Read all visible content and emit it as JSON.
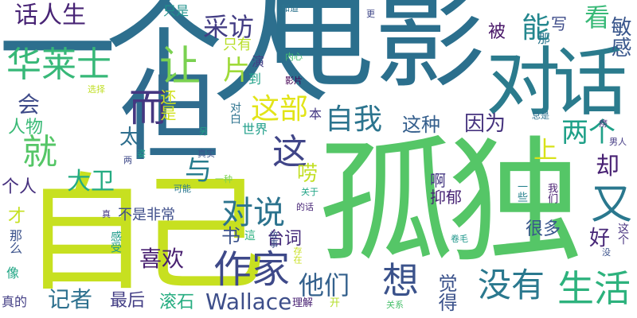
{
  "words": [
    {
      "id": "w1",
      "text": "一个人",
      "color": "#2d6f8e"
    },
    {
      "id": "w2",
      "text": "电影",
      "color": "#2b6f8d"
    },
    {
      "id": "w3",
      "text": "孤独",
      "color": "#55c667"
    },
    {
      "id": "w4",
      "text": "自己",
      "color": "#c7e020"
    },
    {
      "id": "w5",
      "text": "但",
      "color": "#2f6c8e"
    },
    {
      "id": "w6",
      "text": "对话",
      "color": "#2b7b8d"
    },
    {
      "id": "w7",
      "text": "华莱士",
      "color": "#37b878"
    },
    {
      "id": "w8",
      "text": "作家",
      "color": "#3e4989"
    },
    {
      "id": "w9",
      "text": "想",
      "color": "#3b528b"
    },
    {
      "id": "w10",
      "text": "没有",
      "color": "#2a788e"
    },
    {
      "id": "w11",
      "text": "生活",
      "color": "#2db27d"
    },
    {
      "id": "w12",
      "text": "又",
      "color": "#2a788e"
    },
    {
      "id": "w13",
      "text": "话人生",
      "color": "#482475"
    },
    {
      "id": "w14",
      "text": "采访",
      "color": "#433d84"
    },
    {
      "id": "w15",
      "text": "让",
      "color": "#7ad151"
    },
    {
      "id": "w16",
      "text": "而",
      "color": "#453781"
    },
    {
      "id": "w17",
      "text": "能",
      "color": "#24878e"
    },
    {
      "id": "w18",
      "text": "写",
      "color": "#3e4c8a"
    },
    {
      "id": "w19",
      "text": "看",
      "color": "#38b977"
    },
    {
      "id": "w20",
      "text": "敏感",
      "color": "#39568c"
    },
    {
      "id": "w21",
      "text": "这部",
      "color": "#e2e418"
    },
    {
      "id": "w22",
      "text": "自我",
      "color": "#2b748e"
    },
    {
      "id": "w23",
      "text": "就",
      "color": "#55c667"
    },
    {
      "id": "w24",
      "text": "这",
      "color": "#404588"
    },
    {
      "id": "w25",
      "text": "这种",
      "color": "#355f8d"
    },
    {
      "id": "w26",
      "text": "因为",
      "color": "#46337e"
    },
    {
      "id": "w27",
      "text": "两个",
      "color": "#1fa088"
    },
    {
      "id": "w28",
      "text": "对说",
      "color": "#2c738e"
    },
    {
      "id": "w29",
      "text": "大卫",
      "color": "#25ab82"
    },
    {
      "id": "w30",
      "text": "喜欢",
      "color": "#481f70"
    },
    {
      "id": "w31",
      "text": "他们",
      "color": "#34618d"
    },
    {
      "id": "w32",
      "text": "最后",
      "color": "#433e85"
    },
    {
      "id": "w33",
      "text": "Wallace",
      "color": "#3d4e8a"
    },
    {
      "id": "w34",
      "text": "滚石",
      "color": "#27ad81"
    },
    {
      "id": "w35",
      "text": "记者",
      "color": "#2d708e"
    },
    {
      "id": "w36",
      "text": "人物",
      "color": "#3aba76"
    },
    {
      "id": "w37",
      "text": "个人",
      "color": "#46307e"
    },
    {
      "id": "w38",
      "text": "会",
      "color": "#3e4a89"
    },
    {
      "id": "w39",
      "text": "太",
      "color": "#2e6f8e"
    },
    {
      "id": "w40",
      "text": "与",
      "color": "#287d8e"
    },
    {
      "id": "w41",
      "text": "片",
      "color": "#9fda3a"
    },
    {
      "id": "w42",
      "text": "上",
      "color": "#d8e219"
    },
    {
      "id": "w43",
      "text": "却",
      "color": "#482173"
    },
    {
      "id": "w44",
      "text": "啊",
      "color": "#453882"
    },
    {
      "id": "w45",
      "text": "抑郁",
      "color": "#482576"
    },
    {
      "id": "w46",
      "text": "很多",
      "color": "#39568c"
    },
    {
      "id": "w47",
      "text": "好",
      "color": "#482878"
    },
    {
      "id": "w48",
      "text": "觉得",
      "color": "#3b528b"
    },
    {
      "id": "w49",
      "text": "台词",
      "color": "#472d7b"
    },
    {
      "id": "w50",
      "text": "书",
      "color": "#3b528b"
    },
    {
      "id": "w51",
      "text": "唠",
      "color": "#c2df23"
    },
    {
      "id": "w52",
      "text": "只是",
      "color": "#20928c"
    },
    {
      "id": "w53",
      "text": "只有",
      "color": "#b8de29"
    },
    {
      "id": "w54",
      "text": "被",
      "color": "#481668"
    },
    {
      "id": "w55",
      "text": "那",
      "color": "#2a778e"
    },
    {
      "id": "w56",
      "text": "还是",
      "color": "#d0e11c"
    },
    {
      "id": "w57",
      "text": "演",
      "color": "#433e85"
    },
    {
      "id": "w58",
      "text": "到",
      "color": "#1fa188"
    },
    {
      "id": "w59",
      "text": "对白",
      "color": "#2c728e"
    },
    {
      "id": "w60",
      "text": "世界",
      "color": "#1f9e89"
    },
    {
      "id": "w61",
      "text": "本",
      "color": "#443983"
    },
    {
      "id": "w62",
      "text": "影片",
      "color": "#440154"
    },
    {
      "id": "w63",
      "text": "内心",
      "color": "#44bf70"
    },
    {
      "id": "w64",
      "text": "知道",
      "color": "#2c738e"
    },
    {
      "id": "w65",
      "text": "更",
      "color": "#3f4788"
    },
    {
      "id": "w66",
      "text": "总是",
      "color": "#2d708e"
    },
    {
      "id": "w67",
      "text": "痨",
      "color": "#482878"
    },
    {
      "id": "w68",
      "text": "男人",
      "color": "#443b84"
    },
    {
      "id": "w69",
      "text": "选择",
      "color": "#c0df25"
    },
    {
      "id": "w70",
      "text": "另",
      "color": "#20a386"
    },
    {
      "id": "w71",
      "text": "真实",
      "color": "#3a548c"
    },
    {
      "id": "w72",
      "text": "姿",
      "color": "#1fa088"
    },
    {
      "id": "w73",
      "text": "两",
      "color": "#3e4989"
    },
    {
      "id": "w74",
      "text": "可能",
      "color": "#2a778e"
    },
    {
      "id": "w75",
      "text": "一种",
      "color": "#7ad151"
    },
    {
      "id": "w76",
      "text": "一些",
      "color": "#26828e"
    },
    {
      "id": "w77",
      "text": "我们",
      "color": "#482071"
    },
    {
      "id": "w78",
      "text": "关于",
      "color": "#20a486"
    },
    {
      "id": "w79",
      "text": "的话",
      "color": "#482677"
    },
    {
      "id": "w80",
      "text": "真",
      "color": "#453781"
    },
    {
      "id": "w81",
      "text": "不是非常",
      "color": "#3d4d8a"
    },
    {
      "id": "w82",
      "text": "才",
      "color": "#c5e021"
    },
    {
      "id": "w83",
      "text": "那么",
      "color": "#3b528b"
    },
    {
      "id": "w84",
      "text": "感受",
      "color": "#1e9b8a"
    },
    {
      "id": "w85",
      "text": "這",
      "color": "#29af7f"
    },
    {
      "id": "w86",
      "text": "故事",
      "color": "#3c4f8a"
    },
    {
      "id": "w87",
      "text": "存在",
      "color": "#c8e020"
    },
    {
      "id": "w88",
      "text": "像",
      "color": "#21a685"
    },
    {
      "id": "w89",
      "text": "真的",
      "color": "#433e85"
    },
    {
      "id": "w90",
      "text": "理解",
      "color": "#482173"
    },
    {
      "id": "w91",
      "text": "开",
      "color": "#b5de2b"
    },
    {
      "id": "w92",
      "text": "关系",
      "color": "#4ac16d"
    },
    {
      "id": "w93",
      "text": "卷毛",
      "color": "#1f968b"
    },
    {
      "id": "w94",
      "text": "这个",
      "color": "#46307e"
    },
    {
      "id": "w95",
      "text": "没",
      "color": "#3b528b"
    }
  ]
}
